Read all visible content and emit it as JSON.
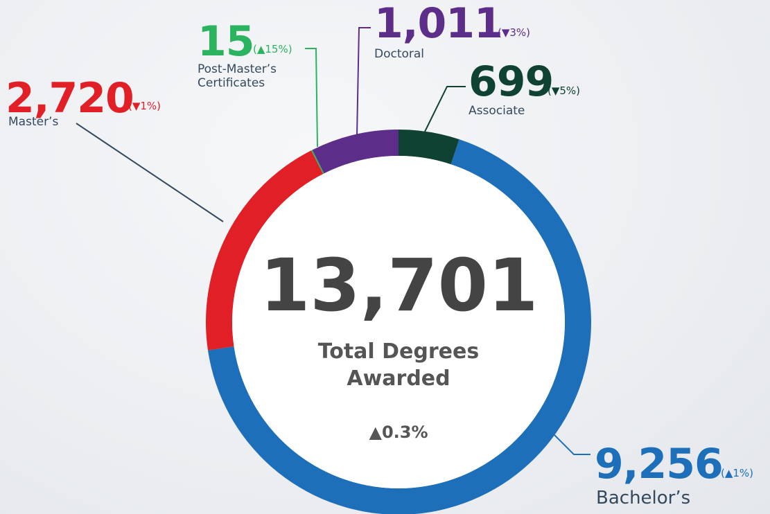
{
  "chart_data": {
    "type": "donut",
    "categories": [
      "Associate",
      "Bachelor’s",
      "Master’s",
      "Post-Master’s Certificates",
      "Doctoral"
    ],
    "values": [
      699,
      9256,
      2720,
      15,
      1011
    ],
    "value_labels": [
      "699",
      "9,256",
      "2,720",
      "15",
      "1,011"
    ],
    "changes": [
      "(▼5%)",
      "(▲1%)",
      "(▼1%)",
      "(▲15%)",
      "(▼3%)"
    ],
    "colors": [
      "#0f4233",
      "#1c6fb8",
      "#e01f26",
      "#2bb35f",
      "#5c2d89"
    ],
    "center_value": "13,701",
    "center_label": "Total Degrees Awarded",
    "center_change": "▲0.3%"
  }
}
